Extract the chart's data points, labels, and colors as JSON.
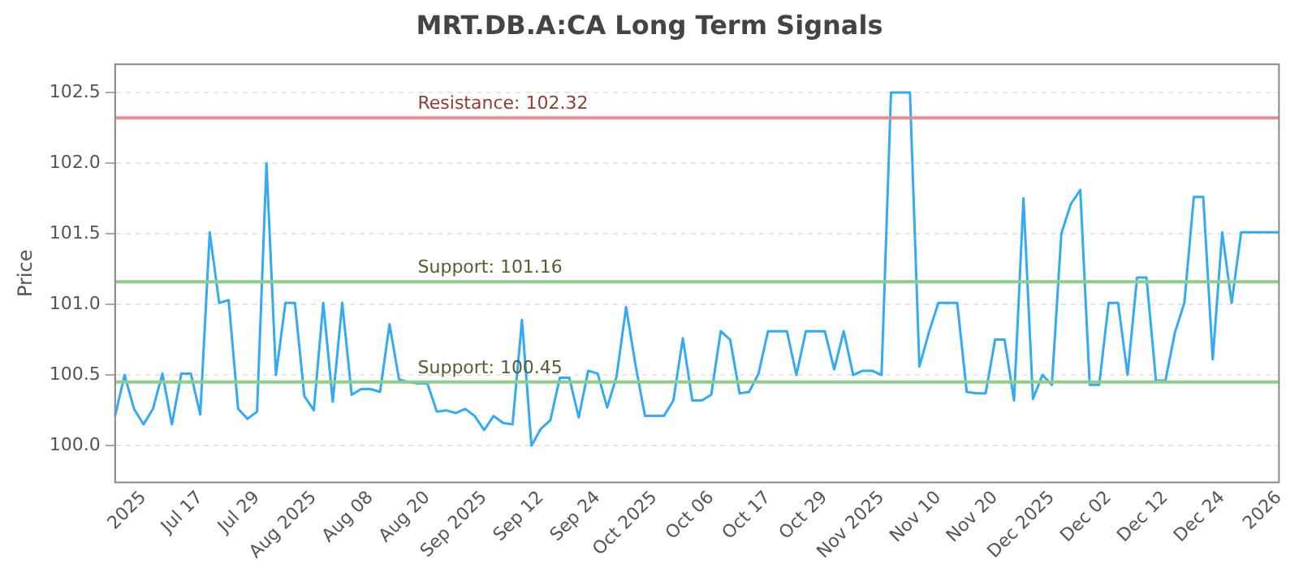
{
  "chart_data": {
    "type": "line",
    "title": "MRT.DB.A:CA Long Term Signals",
    "ylabel": "Price",
    "categories": [
      null,
      null,
      null,
      "2025",
      null,
      null,
      null,
      null,
      null,
      "Jul 17",
      null,
      null,
      null,
      null,
      null,
      "Jul 29",
      null,
      null,
      null,
      null,
      null,
      "Aug 2025",
      null,
      null,
      null,
      null,
      null,
      "Aug 08",
      null,
      null,
      null,
      null,
      null,
      "Aug 20",
      null,
      null,
      null,
      null,
      null,
      "Sep 2025",
      null,
      null,
      null,
      null,
      null,
      "Sep 12",
      null,
      null,
      null,
      null,
      null,
      "Sep 24",
      null,
      null,
      null,
      null,
      null,
      "Oct 2025",
      null,
      null,
      null,
      null,
      null,
      "Oct 06",
      null,
      null,
      null,
      null,
      null,
      "Oct 17",
      null,
      null,
      null,
      null,
      null,
      "Oct 29",
      null,
      null,
      null,
      null,
      null,
      "Nov 2025",
      null,
      null,
      null,
      null,
      null,
      "Nov 10",
      null,
      null,
      null,
      null,
      null,
      "Nov 20",
      null,
      null,
      null,
      null,
      null,
      "Dec 2025",
      null,
      null,
      null,
      null,
      null,
      "Dec 02",
      null,
      null,
      null,
      null,
      null,
      "Dec 12",
      null,
      null,
      null,
      null,
      null,
      "Dec 24",
      null,
      null,
      null,
      null,
      null,
      "2026"
    ],
    "series": [
      {
        "color": "#33aaf5",
        "values": [
          100.21,
          100.5,
          100.26,
          100.15,
          100.26,
          100.51,
          100.15,
          100.51,
          100.51,
          100.22,
          101.51,
          101.01,
          101.03,
          100.26,
          100.19,
          100.24,
          102.0,
          100.5,
          101.01,
          101.01,
          100.35,
          100.25,
          101.01,
          100.31,
          101.01,
          100.36,
          100.4,
          100.4,
          100.38,
          100.86,
          100.47,
          100.45,
          100.44,
          100.44,
          100.24,
          100.25,
          100.23,
          100.26,
          100.21,
          100.11,
          100.21,
          100.16,
          100.15,
          100.89,
          100.0,
          100.12,
          100.18,
          100.48,
          100.48,
          100.2,
          100.53,
          100.51,
          100.27,
          100.49,
          100.98,
          100.57,
          100.21,
          100.21,
          100.21,
          100.32,
          100.76,
          100.32,
          100.32,
          100.36,
          100.81,
          100.75,
          100.37,
          100.38,
          100.51,
          100.81,
          100.81,
          100.81,
          100.5,
          100.81,
          100.81,
          100.81,
          100.54,
          100.81,
          100.5,
          100.53,
          100.53,
          100.5,
          102.5,
          102.5,
          102.5,
          100.56,
          100.8,
          101.01,
          101.01,
          101.01,
          100.38,
          100.37,
          100.37,
          100.75,
          100.75,
          100.32,
          101.75,
          100.33,
          100.5,
          100.43,
          101.5,
          101.71,
          101.81,
          100.43,
          100.43,
          101.01,
          101.01,
          100.5,
          101.19,
          101.19,
          100.46,
          100.46,
          100.8,
          101.01,
          101.76,
          101.76,
          100.61,
          101.51,
          101.01,
          101.51,
          101.51,
          101.51,
          101.51,
          101.51
        ]
      }
    ],
    "ylim": [
      99.74,
      102.7
    ],
    "yticks": [
      {
        "value": 100,
        "label": "100.0"
      },
      100.5,
      {
        "value": 101,
        "label": "101.0"
      },
      101.5,
      {
        "value": 102,
        "label": "102.0"
      },
      102.5
    ],
    "ref_lines": [
      {
        "axis": "y",
        "value": 102.32,
        "label": "Resistance: 102.32",
        "color": "#f08a8a"
      },
      {
        "axis": "y",
        "value": 101.16,
        "label": "Support: 101.16",
        "color": "#8fce8a"
      },
      {
        "axis": "y",
        "value": 100.45,
        "label": "Support: 100.45",
        "color": "#8fce8a"
      }
    ],
    "grid": "y",
    "legend": false,
    "marker": "none",
    "line_style": "solid"
  }
}
